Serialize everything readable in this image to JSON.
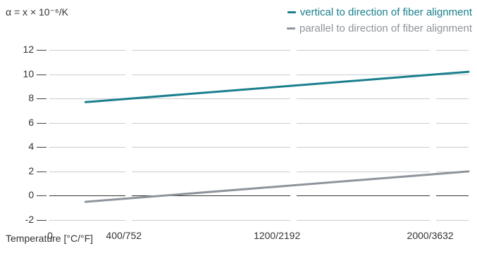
{
  "chart_data": {
    "type": "line",
    "title": "",
    "ylabel": "α = x × 10⁻⁶/K",
    "xlabel": "Temperature [°C/°F]",
    "x_range": [
      0,
      2200
    ],
    "ylim": [
      -2,
      12
    ],
    "y_ticks": [
      12,
      10,
      8,
      6,
      4,
      2,
      0,
      -2
    ],
    "y_tick_labels": [
      "12",
      "10",
      "8",
      "6",
      "4",
      "2",
      "0",
      "-2"
    ],
    "x_ticks": [
      0,
      400,
      1200,
      2000
    ],
    "x_tick_labels": [
      "0",
      "400/752",
      "1200/2192",
      "2000/3632"
    ],
    "grid": true,
    "legend_position": "top-right",
    "series": [
      {
        "name": "vertical to direction of fiber alignment",
        "color": "#1a7f8c",
        "x": [
          200,
          2200
        ],
        "y": [
          7.7,
          10.2
        ]
      },
      {
        "name": "parallel to direction of fiber alignment",
        "color": "#8e949b",
        "x": [
          200,
          2200
        ],
        "y": [
          -0.5,
          2.0
        ]
      }
    ]
  }
}
